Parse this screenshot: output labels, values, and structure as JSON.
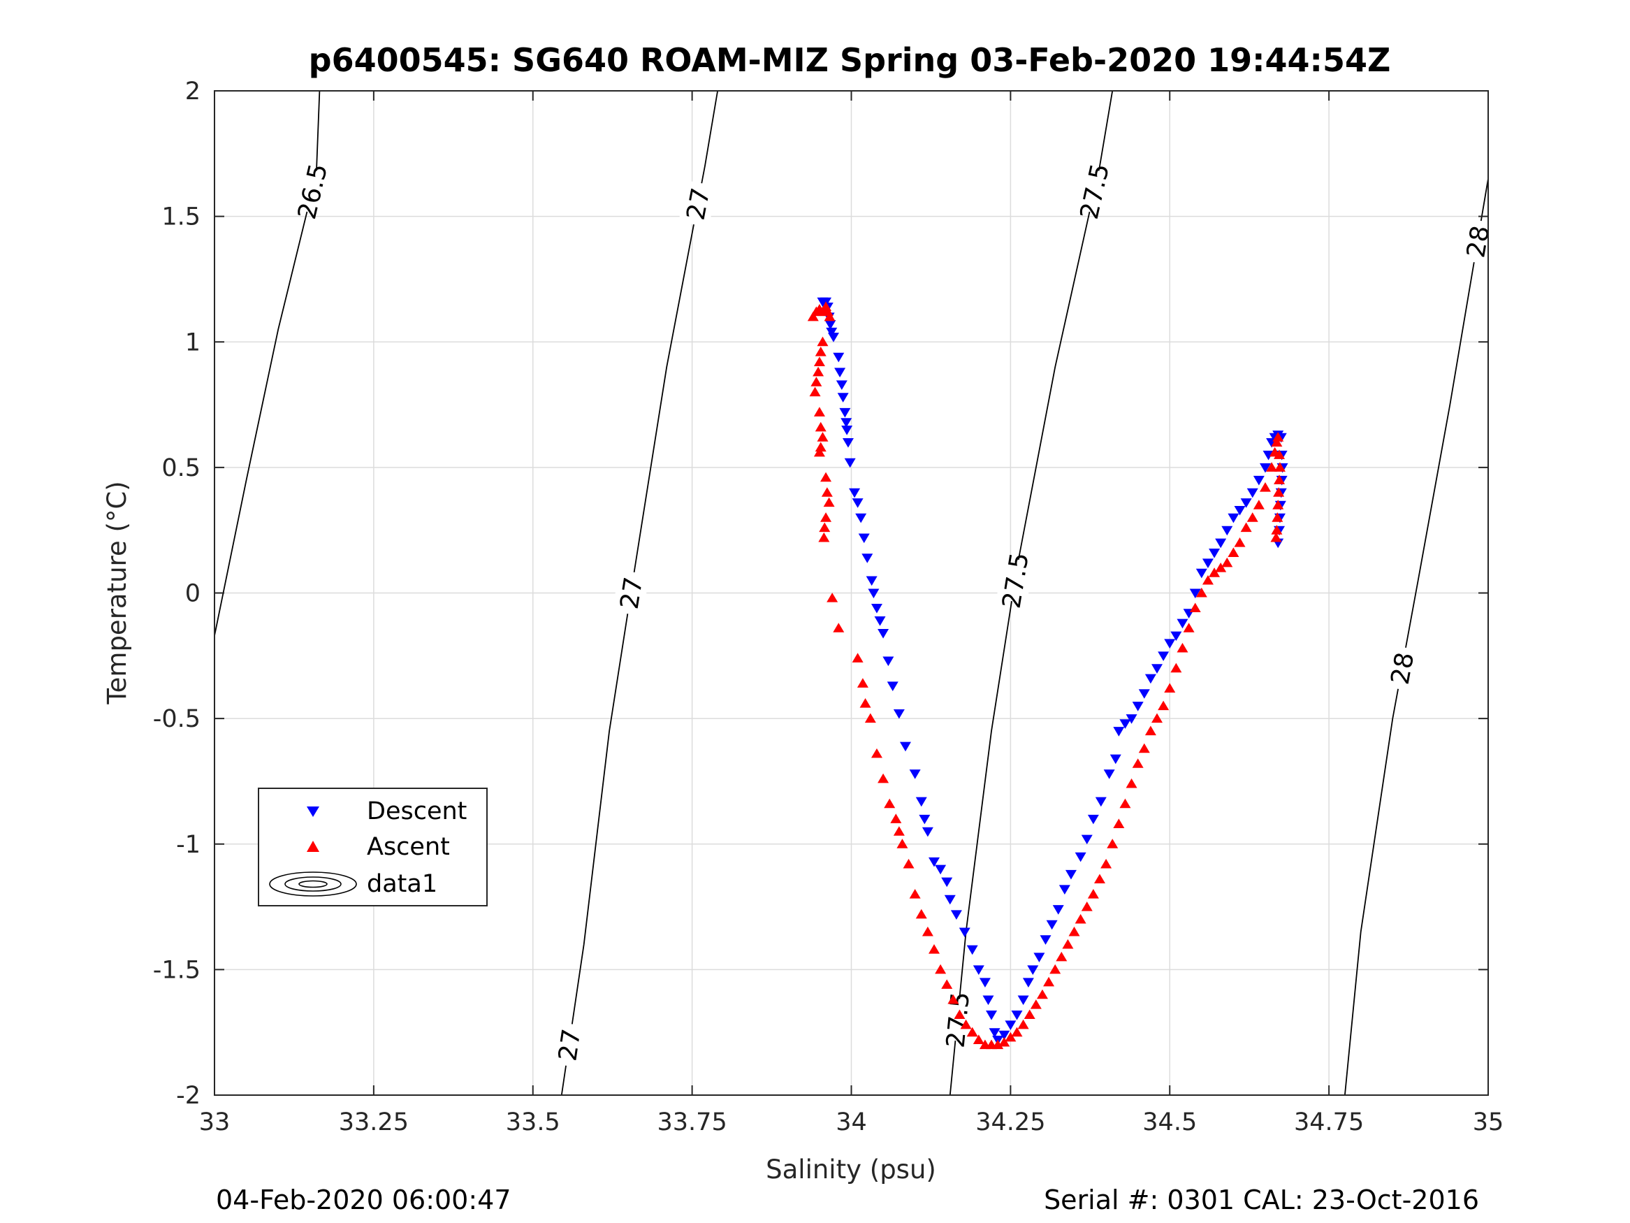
{
  "chart_data": {
    "type": "scatter",
    "title": "p6400545: SG640 ROAM-MIZ Spring 03-Feb-2020 19:44:54Z",
    "xlabel": "Salinity (psu)",
    "ylabel": "Temperature (°C)",
    "xlim": [
      33,
      35
    ],
    "ylim": [
      -2,
      2
    ],
    "xticks": [
      "33",
      "33.25",
      "33.5",
      "33.75",
      "34",
      "34.25",
      "34.5",
      "34.75",
      "35"
    ],
    "yticks": [
      "2",
      "1.5",
      "1",
      "0.5",
      "0",
      "-0.5",
      "-1",
      "-1.5",
      "-2"
    ],
    "grid": true,
    "legend_position": "lower-left",
    "legend": [
      "Descent",
      "Ascent",
      "data1"
    ],
    "footer_left": "04-Feb-2020 06:00:47",
    "footer_right": "Serial #: 0301  CAL: 23-Oct-2016",
    "contour_labels": [
      "26.5",
      "27",
      "27",
      "27",
      "27.5",
      "27.5",
      "27.5",
      "28",
      "28"
    ],
    "contours": [
      {
        "name": "26.5",
        "points": [
          [
            33.0,
            -0.17
          ],
          [
            33.05,
            0.45
          ],
          [
            33.1,
            1.05
          ],
          [
            33.16,
            1.67
          ],
          [
            33.165,
            2.0
          ]
        ]
      },
      {
        "name": "27",
        "points": [
          [
            33.545,
            -2.0
          ],
          [
            33.58,
            -1.4
          ],
          [
            33.62,
            -0.55
          ],
          [
            33.66,
            0.1
          ],
          [
            33.71,
            0.9
          ],
          [
            33.77,
            1.7
          ],
          [
            33.79,
            2.0
          ]
        ]
      },
      {
        "name": "27.5",
        "points": [
          [
            34.155,
            -2.0
          ],
          [
            34.18,
            -1.35
          ],
          [
            34.22,
            -0.55
          ],
          [
            34.26,
            0.1
          ],
          [
            34.32,
            0.9
          ],
          [
            34.39,
            1.7
          ],
          [
            34.41,
            2.0
          ]
        ]
      },
      {
        "name": "28",
        "points": [
          [
            34.775,
            -2.0
          ],
          [
            34.8,
            -1.35
          ],
          [
            34.85,
            -0.5
          ],
          [
            34.89,
            0.05
          ],
          [
            34.94,
            0.75
          ],
          [
            35.0,
            1.65
          ]
        ]
      }
    ],
    "series": [
      {
        "name": "Descent",
        "marker": "triangle-down",
        "color": "#0000ff",
        "points": [
          [
            33.955,
            1.16
          ],
          [
            33.96,
            1.16
          ],
          [
            33.963,
            1.14
          ],
          [
            33.965,
            1.1
          ],
          [
            33.967,
            1.07
          ],
          [
            33.969,
            1.04
          ],
          [
            33.972,
            1.02
          ],
          [
            33.98,
            0.94
          ],
          [
            33.982,
            0.88
          ],
          [
            33.985,
            0.83
          ],
          [
            33.987,
            0.78
          ],
          [
            33.99,
            0.72
          ],
          [
            33.992,
            0.68
          ],
          [
            33.993,
            0.65
          ],
          [
            33.995,
            0.6
          ],
          [
            33.998,
            0.52
          ],
          [
            34.005,
            0.4
          ],
          [
            34.01,
            0.36
          ],
          [
            34.015,
            0.3
          ],
          [
            34.02,
            0.22
          ],
          [
            34.025,
            0.14
          ],
          [
            34.032,
            0.05
          ],
          [
            34.035,
            0.0
          ],
          [
            34.04,
            -0.06
          ],
          [
            34.045,
            -0.11
          ],
          [
            34.05,
            -0.16
          ],
          [
            34.058,
            -0.27
          ],
          [
            34.065,
            -0.37
          ],
          [
            34.075,
            -0.48
          ],
          [
            34.085,
            -0.61
          ],
          [
            34.1,
            -0.72
          ],
          [
            34.11,
            -0.83
          ],
          [
            34.115,
            -0.9
          ],
          [
            34.12,
            -0.95
          ],
          [
            34.13,
            -1.07
          ],
          [
            34.14,
            -1.1
          ],
          [
            34.15,
            -1.15
          ],
          [
            34.155,
            -1.22
          ],
          [
            34.165,
            -1.28
          ],
          [
            34.178,
            -1.35
          ],
          [
            34.19,
            -1.42
          ],
          [
            34.2,
            -1.5
          ],
          [
            34.21,
            -1.55
          ],
          [
            34.215,
            -1.62
          ],
          [
            34.22,
            -1.68
          ],
          [
            34.225,
            -1.75
          ],
          [
            34.23,
            -1.78
          ],
          [
            34.24,
            -1.76
          ],
          [
            34.25,
            -1.72
          ],
          [
            34.26,
            -1.68
          ],
          [
            34.27,
            -1.62
          ],
          [
            34.278,
            -1.55
          ],
          [
            34.285,
            -1.5
          ],
          [
            34.295,
            -1.45
          ],
          [
            34.305,
            -1.38
          ],
          [
            34.315,
            -1.32
          ],
          [
            34.325,
            -1.26
          ],
          [
            34.335,
            -1.18
          ],
          [
            34.345,
            -1.12
          ],
          [
            34.36,
            -1.05
          ],
          [
            34.37,
            -0.98
          ],
          [
            34.38,
            -0.9
          ],
          [
            34.392,
            -0.83
          ],
          [
            34.405,
            -0.72
          ],
          [
            34.415,
            -0.66
          ],
          [
            34.42,
            -0.55
          ],
          [
            34.43,
            -0.52
          ],
          [
            34.44,
            -0.5
          ],
          [
            34.45,
            -0.45
          ],
          [
            34.46,
            -0.4
          ],
          [
            34.47,
            -0.34
          ],
          [
            34.48,
            -0.3
          ],
          [
            34.49,
            -0.25
          ],
          [
            34.5,
            -0.2
          ],
          [
            34.51,
            -0.17
          ],
          [
            34.52,
            -0.12
          ],
          [
            34.53,
            -0.08
          ],
          [
            34.54,
            0.0
          ],
          [
            34.55,
            0.08
          ],
          [
            34.56,
            0.12
          ],
          [
            34.57,
            0.16
          ],
          [
            34.58,
            0.2
          ],
          [
            34.59,
            0.25
          ],
          [
            34.6,
            0.3
          ],
          [
            34.61,
            0.33
          ],
          [
            34.62,
            0.36
          ],
          [
            34.63,
            0.4
          ],
          [
            34.64,
            0.45
          ],
          [
            34.65,
            0.5
          ],
          [
            34.655,
            0.55
          ],
          [
            34.66,
            0.6
          ],
          [
            34.665,
            0.62
          ],
          [
            34.67,
            0.63
          ],
          [
            34.675,
            0.62
          ],
          [
            34.676,
            0.55
          ],
          [
            34.677,
            0.5
          ],
          [
            34.676,
            0.45
          ],
          [
            34.675,
            0.4
          ],
          [
            34.674,
            0.35
          ],
          [
            34.673,
            0.3
          ],
          [
            34.672,
            0.25
          ],
          [
            34.67,
            0.2
          ]
        ]
      },
      {
        "name": "Ascent",
        "marker": "triangle-up",
        "color": "#ff0000",
        "points": [
          [
            33.94,
            1.1
          ],
          [
            33.945,
            1.12
          ],
          [
            33.95,
            1.13
          ],
          [
            33.955,
            1.12
          ],
          [
            33.96,
            1.14
          ],
          [
            33.963,
            1.12
          ],
          [
            33.966,
            1.1
          ],
          [
            33.955,
            1.0
          ],
          [
            33.952,
            0.96
          ],
          [
            33.95,
            0.92
          ],
          [
            33.948,
            0.88
          ],
          [
            33.945,
            0.84
          ],
          [
            33.943,
            0.8
          ],
          [
            33.95,
            0.72
          ],
          [
            33.952,
            0.66
          ],
          [
            33.955,
            0.62
          ],
          [
            33.952,
            0.58
          ],
          [
            33.95,
            0.56
          ],
          [
            33.96,
            0.46
          ],
          [
            33.962,
            0.4
          ],
          [
            33.965,
            0.36
          ],
          [
            33.96,
            0.3
          ],
          [
            33.958,
            0.26
          ],
          [
            33.957,
            0.22
          ],
          [
            33.97,
            -0.02
          ],
          [
            33.98,
            -0.14
          ],
          [
            34.01,
            -0.26
          ],
          [
            34.018,
            -0.36
          ],
          [
            34.022,
            -0.44
          ],
          [
            34.03,
            -0.5
          ],
          [
            34.04,
            -0.64
          ],
          [
            34.05,
            -0.74
          ],
          [
            34.06,
            -0.84
          ],
          [
            34.07,
            -0.9
          ],
          [
            34.075,
            -0.95
          ],
          [
            34.08,
            -1.0
          ],
          [
            34.09,
            -1.08
          ],
          [
            34.1,
            -1.2
          ],
          [
            34.11,
            -1.28
          ],
          [
            34.12,
            -1.35
          ],
          [
            34.13,
            -1.42
          ],
          [
            34.14,
            -1.5
          ],
          [
            34.15,
            -1.56
          ],
          [
            34.16,
            -1.62
          ],
          [
            34.17,
            -1.68
          ],
          [
            34.18,
            -1.72
          ],
          [
            34.19,
            -1.75
          ],
          [
            34.2,
            -1.78
          ],
          [
            34.21,
            -1.8
          ],
          [
            34.22,
            -1.8
          ],
          [
            34.23,
            -1.8
          ],
          [
            34.24,
            -1.79
          ],
          [
            34.25,
            -1.77
          ],
          [
            34.26,
            -1.75
          ],
          [
            34.27,
            -1.72
          ],
          [
            34.28,
            -1.68
          ],
          [
            34.29,
            -1.64
          ],
          [
            34.3,
            -1.6
          ],
          [
            34.31,
            -1.55
          ],
          [
            34.32,
            -1.5
          ],
          [
            34.33,
            -1.45
          ],
          [
            34.34,
            -1.4
          ],
          [
            34.35,
            -1.35
          ],
          [
            34.36,
            -1.3
          ],
          [
            34.37,
            -1.25
          ],
          [
            34.38,
            -1.2
          ],
          [
            34.39,
            -1.14
          ],
          [
            34.4,
            -1.08
          ],
          [
            34.41,
            -1.0
          ],
          [
            34.42,
            -0.92
          ],
          [
            34.43,
            -0.84
          ],
          [
            34.44,
            -0.76
          ],
          [
            34.45,
            -0.68
          ],
          [
            34.46,
            -0.62
          ],
          [
            34.47,
            -0.55
          ],
          [
            34.48,
            -0.5
          ],
          [
            34.49,
            -0.45
          ],
          [
            34.5,
            -0.38
          ],
          [
            34.51,
            -0.3
          ],
          [
            34.52,
            -0.22
          ],
          [
            34.53,
            -0.14
          ],
          [
            34.54,
            -0.06
          ],
          [
            34.55,
            0.0
          ],
          [
            34.56,
            0.05
          ],
          [
            34.57,
            0.08
          ],
          [
            34.58,
            0.1
          ],
          [
            34.59,
            0.12
          ],
          [
            34.6,
            0.16
          ],
          [
            34.61,
            0.2
          ],
          [
            34.62,
            0.26
          ],
          [
            34.63,
            0.3
          ],
          [
            34.64,
            0.35
          ],
          [
            34.65,
            0.42
          ],
          [
            34.66,
            0.5
          ],
          [
            34.665,
            0.56
          ],
          [
            34.668,
            0.6
          ],
          [
            34.67,
            0.62
          ],
          [
            34.672,
            0.55
          ],
          [
            34.673,
            0.5
          ],
          [
            34.672,
            0.45
          ],
          [
            34.671,
            0.4
          ],
          [
            34.67,
            0.35
          ],
          [
            34.669,
            0.3
          ],
          [
            34.668,
            0.25
          ],
          [
            34.667,
            0.22
          ]
        ]
      }
    ]
  }
}
